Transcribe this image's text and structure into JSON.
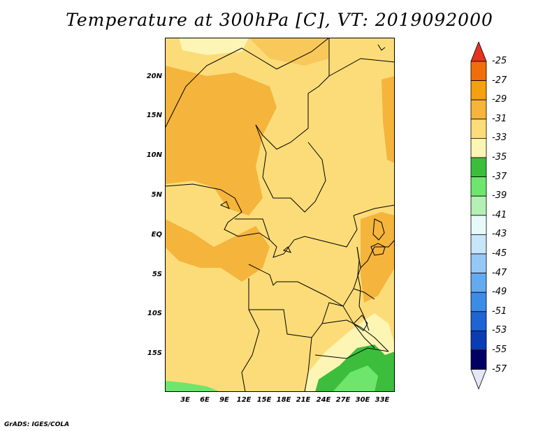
{
  "title": "Temperature at 300hPa [C], VT: 2019092000",
  "credit": "GrADS: IGES/COLA",
  "map": {
    "region": "Central Africa",
    "lat_labels": [
      "20N",
      "15N",
      "10N",
      "5N",
      "EQ",
      "5S",
      "10S",
      "15S"
    ],
    "lon_labels": [
      "3E",
      "6E",
      "9E",
      "12E",
      "15E",
      "18E",
      "21E",
      "24E",
      "27E",
      "30E",
      "33E"
    ]
  },
  "colorbar": {
    "levels": [
      "-25",
      "-27",
      "-29",
      "-31",
      "-33",
      "-35",
      "-37",
      "-39",
      "-41",
      "-43",
      "-45",
      "-47",
      "-49",
      "-51",
      "-53",
      "-55",
      "-57"
    ],
    "colors": [
      "#e8321e",
      "#f06e0a",
      "#f5a00e",
      "#f5b43c",
      "#fcdc78",
      "#fdf5b4",
      "#3cbe3c",
      "#6ee66e",
      "#b4f0b4",
      "#e6fafa",
      "#c8e6fa",
      "#96c8f5",
      "#64aaf0",
      "#3c8ce6",
      "#1e64d2",
      "#0a3cb4",
      "#000064",
      "#e6e6f5"
    ]
  }
}
